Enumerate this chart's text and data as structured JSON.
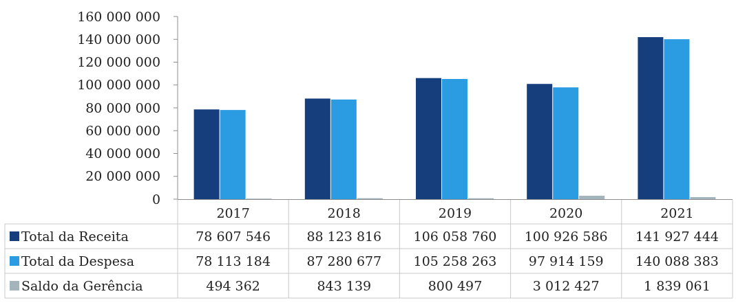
{
  "chart_data": {
    "type": "bar",
    "categories": [
      "2017",
      "2018",
      "2019",
      "2020",
      "2021"
    ],
    "series": [
      {
        "name": "Total da Receita",
        "color": "#173e7c",
        "values": [
          78607546,
          88123816,
          106058760,
          100926586,
          141927444
        ]
      },
      {
        "name": "Total da Despesa",
        "color": "#2b9be2",
        "values": [
          78113184,
          87280677,
          105258263,
          97914159,
          140088383
        ]
      },
      {
        "name": "Saldo da Gerência",
        "color": "#a4b4bc",
        "values": [
          494362,
          843139,
          800497,
          3012427,
          1839061
        ]
      }
    ],
    "ylim": [
      0,
      160000000
    ],
    "yticks": [
      0,
      {
        "value": 20000000,
        "label": "20 000 000"
      },
      {
        "value": 40000000,
        "label": "40 000 000"
      },
      {
        "value": 60000000,
        "label": "60 000 000"
      },
      {
        "value": 80000000,
        "label": "80 000 000"
      },
      {
        "value": 100000000,
        "label": "100 000 000"
      },
      {
        "value": 120000000,
        "label": "120 000 000"
      },
      {
        "value": 140000000,
        "label": "140 000 000"
      },
      {
        "value": 160000000,
        "label": "160 000 000"
      }
    ],
    "legend": "bottom",
    "data_labels": true
  }
}
